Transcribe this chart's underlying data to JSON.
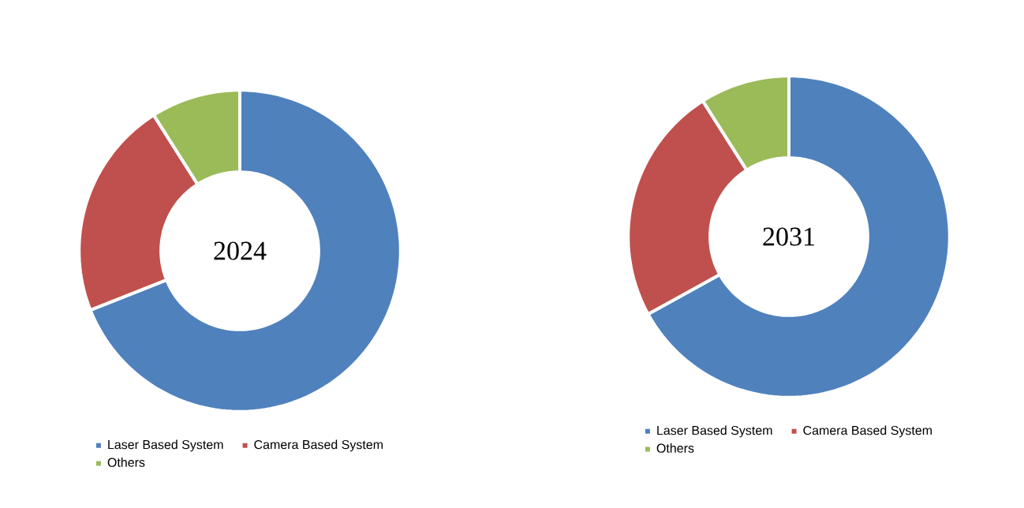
{
  "chart_data": [
    {
      "type": "donut",
      "title": "2024",
      "categories": [
        "Laser Based System",
        "Camera Based System",
        "Others"
      ],
      "values": [
        69,
        22,
        9
      ],
      "colors": [
        "#4f81bd",
        "#c0504d",
        "#9bbb59"
      ],
      "legend": "bottom"
    },
    {
      "type": "donut",
      "title": "2031",
      "categories": [
        "Laser Based System",
        "Camera Based System",
        "Others"
      ],
      "values": [
        67,
        24,
        9
      ],
      "colors": [
        "#4f81bd",
        "#c0504d",
        "#9bbb59"
      ],
      "legend": "bottom"
    }
  ]
}
